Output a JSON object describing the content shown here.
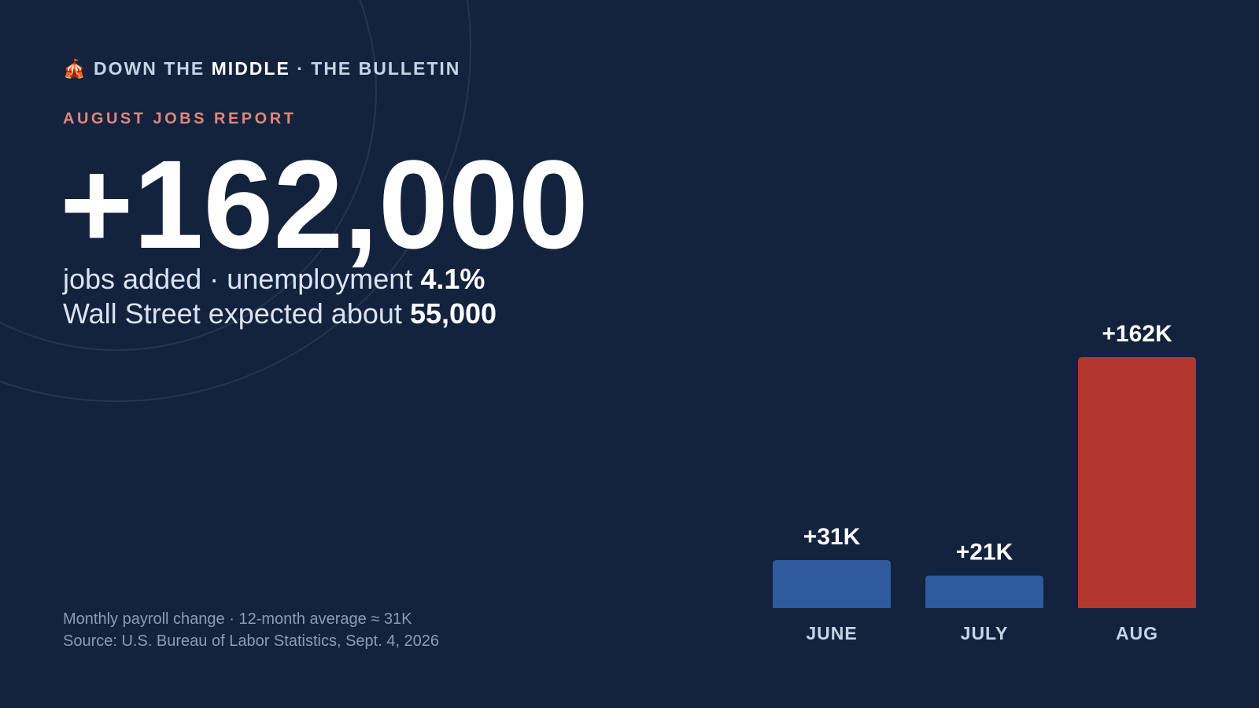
{
  "brand": {
    "icon": "🎪",
    "name_start": "DOWN THE",
    "name_bold": "MIDDLE",
    "separator": "·",
    "section": "THE BULLETIN"
  },
  "kicker": "AUGUST JOBS REPORT",
  "headline": "+162,000",
  "subline_1": {
    "text": "jobs added",
    "separator": "·",
    "label": "unemployment",
    "value": "4.1%"
  },
  "subline_2": {
    "text": "Wall Street expected about",
    "value": "55,000"
  },
  "footer": {
    "note": "Monthly payroll change · 12-month average ≈ 31K",
    "source": "Source: U.S. Bureau of Labor Statistics, Sept. 4, 2026"
  },
  "chart_data": {
    "type": "bar",
    "categories": [
      "JUNE",
      "JULY",
      "AUG"
    ],
    "values": [
      31,
      21,
      162
    ],
    "value_labels": [
      "+31K",
      "+21K",
      "+162K"
    ],
    "colors": [
      "#2e5a9e",
      "#2e5a9e",
      "#b3372f"
    ]
  }
}
